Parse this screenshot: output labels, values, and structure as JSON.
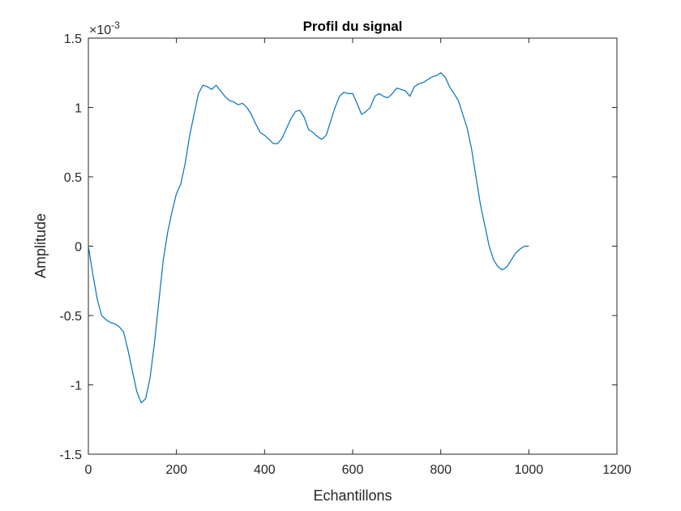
{
  "chart_data": {
    "type": "line",
    "title": "Profil du signal",
    "xlabel": "Echantillons",
    "ylabel": "Amplitude",
    "exponent_base": "×10",
    "exponent_power": "-3",
    "xlim": [
      0,
      1200
    ],
    "ylim": [
      -1.5,
      1.5
    ],
    "xticks": [
      0,
      200,
      400,
      600,
      800,
      1000,
      1200
    ],
    "yticks": [
      -1.5,
      -1,
      -0.5,
      0,
      0.5,
      1,
      1.5
    ],
    "xtick_labels": [
      "0",
      "200",
      "400",
      "600",
      "800",
      "1000",
      "1200"
    ],
    "ytick_labels": [
      "-1.5",
      "-1",
      "-0.5",
      "0",
      "0.5",
      "1",
      "1.5"
    ],
    "grid": false,
    "line_color": "#0072BD",
    "series": [
      {
        "x": [
          0,
          10,
          20,
          30,
          40,
          50,
          60,
          70,
          80,
          90,
          100,
          110,
          120,
          130,
          140,
          150,
          160,
          170,
          180,
          190,
          200,
          210,
          220,
          230,
          240,
          250,
          260,
          270,
          280,
          290,
          300,
          310,
          320,
          330,
          340,
          350,
          360,
          370,
          380,
          390,
          400,
          410,
          420,
          430,
          440,
          450,
          460,
          470,
          480,
          490,
          500,
          510,
          520,
          530,
          540,
          550,
          560,
          570,
          580,
          590,
          600,
          610,
          620,
          630,
          640,
          650,
          660,
          670,
          680,
          690,
          700,
          710,
          720,
          730,
          740,
          750,
          760,
          770,
          780,
          790,
          800,
          810,
          820,
          830,
          840,
          850,
          860,
          870,
          880,
          890,
          900,
          910,
          920,
          930,
          940,
          950,
          960,
          970,
          980,
          990,
          1000
        ],
        "y": [
          0,
          -0.2,
          -0.38,
          -0.5,
          -0.53,
          -0.55,
          -0.56,
          -0.58,
          -0.62,
          -0.75,
          -0.9,
          -1.05,
          -1.13,
          -1.1,
          -0.95,
          -0.7,
          -0.4,
          -0.1,
          0.1,
          0.25,
          0.38,
          0.45,
          0.6,
          0.8,
          0.95,
          1.1,
          1.16,
          1.15,
          1.13,
          1.16,
          1.12,
          1.08,
          1.05,
          1.04,
          1.02,
          1.03,
          1.0,
          0.95,
          0.88,
          0.82,
          0.8,
          0.77,
          0.74,
          0.74,
          0.78,
          0.85,
          0.92,
          0.97,
          0.98,
          0.93,
          0.84,
          0.82,
          0.79,
          0.77,
          0.8,
          0.9,
          1.0,
          1.08,
          1.11,
          1.1,
          1.1,
          1.03,
          0.95,
          0.97,
          1.0,
          1.08,
          1.1,
          1.08,
          1.07,
          1.1,
          1.14,
          1.13,
          1.12,
          1.08,
          1.15,
          1.17,
          1.18,
          1.2,
          1.22,
          1.23,
          1.25,
          1.22,
          1.15,
          1.1,
          1.05,
          0.95,
          0.85,
          0.7,
          0.5,
          0.3,
          0.15,
          0.0,
          -0.1,
          -0.15,
          -0.17,
          -0.15,
          -0.1,
          -0.05,
          -0.02,
          0.0,
          0.0
        ]
      }
    ]
  }
}
